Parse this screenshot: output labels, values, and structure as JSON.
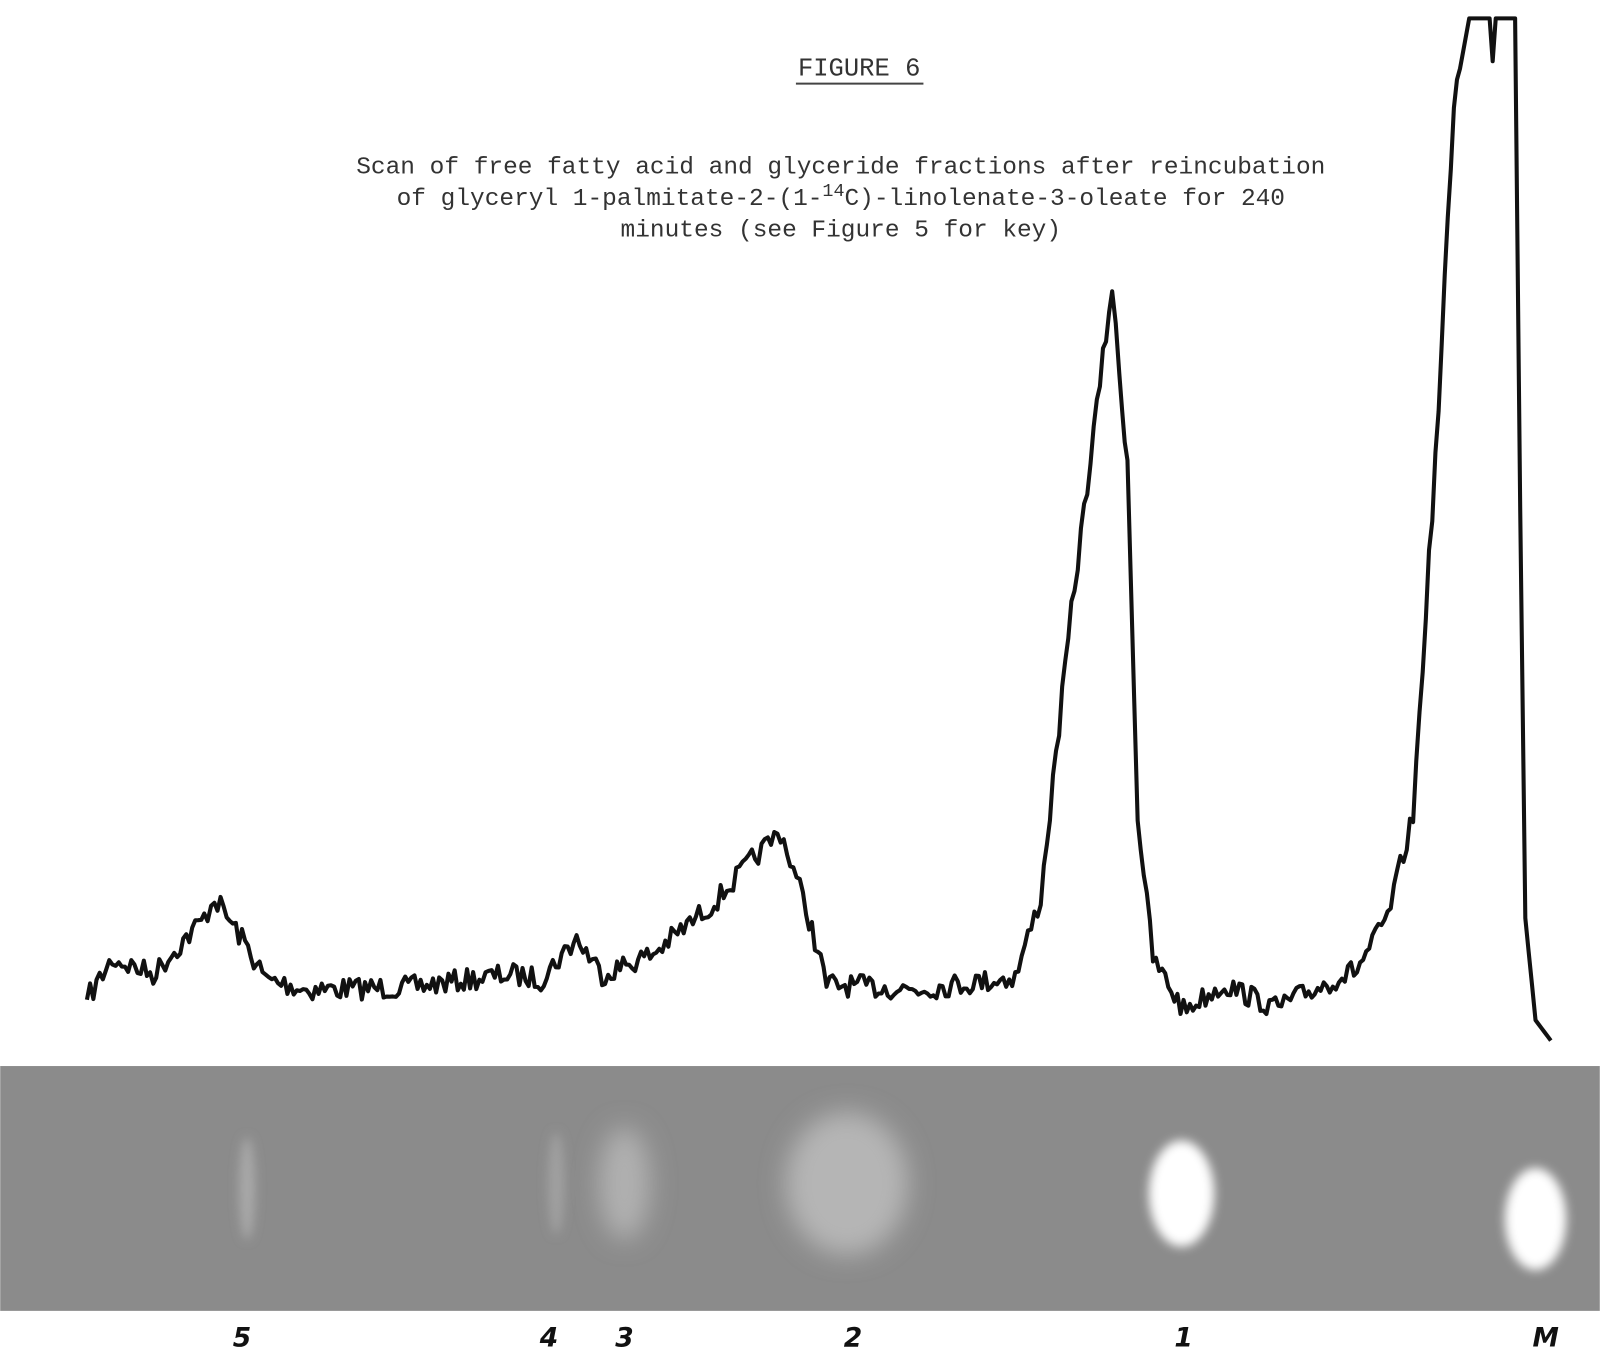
{
  "figure": {
    "label": "FIGURE 6",
    "caption": [
      [
        "Scan of free fatty acid and glyceride fractions after reincubation"
      ],
      [
        "of glyceryl 1-palmitate-2-(1-",
        "14",
        "C)-linolenate-3-oleate for 240"
      ],
      [
        "minutes (see Figure 5 for key)"
      ]
    ],
    "lane_labels": [
      "5",
      "4",
      "3",
      "2",
      "1",
      "M"
    ]
  }
}
